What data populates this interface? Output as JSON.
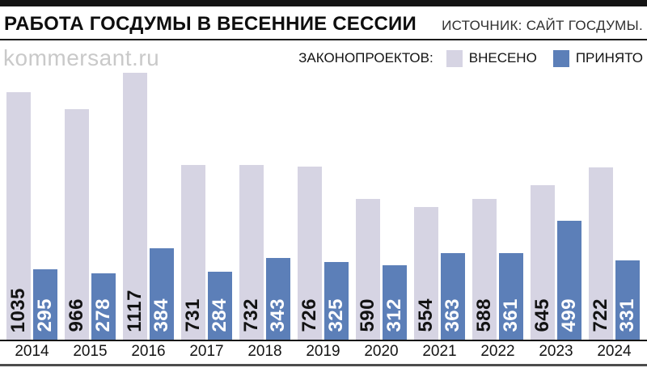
{
  "header": {
    "title": "РАБОТА ГОСДУМЫ В ВЕСЕННИЕ СЕССИИ",
    "source": "ИСТОЧНИК: САЙТ ГОСДУМЫ.",
    "brand": "kommersant.ru"
  },
  "legend": {
    "title": "ЗАКОНОПРОЕКТОВ:",
    "items": [
      {
        "label": "ВНЕСЕНО",
        "color": "#d6d4e3"
      },
      {
        "label": "ПРИНЯТО",
        "color": "#5c7fb8"
      }
    ]
  },
  "chart_data": {
    "type": "bar",
    "title": "РАБОТА ГОСДУМЫ В ВЕСЕННИЕ СЕССИИ",
    "categories": [
      "2014",
      "2015",
      "2016",
      "2017",
      "2018",
      "2019",
      "2020",
      "2021",
      "2022",
      "2023",
      "2024"
    ],
    "series": [
      {
        "name": "ВНЕСЕНО",
        "color": "#d6d4e3",
        "label_color": "#121212",
        "values": [
          1035,
          966,
          1117,
          731,
          732,
          726,
          590,
          554,
          588,
          645,
          722
        ]
      },
      {
        "name": "ПРИНЯТО",
        "color": "#5c7fb8",
        "label_color": "#ffffff",
        "values": [
          295,
          278,
          384,
          284,
          343,
          325,
          312,
          363,
          361,
          499,
          331
        ]
      }
    ],
    "xlabel": "",
    "ylabel": "",
    "ylim": [
      0,
      1117
    ],
    "grid": false,
    "legend_position": "top-right",
    "value_label_style": "rotated-90-inside-bottom",
    "axis_line_color": "#161616",
    "bottom_rule_color": "#4d4d4d"
  }
}
